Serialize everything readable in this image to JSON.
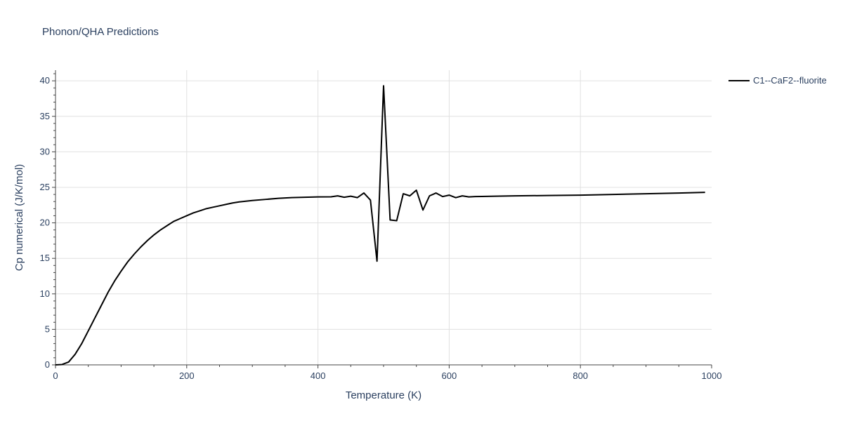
{
  "chart_data": {
    "type": "line",
    "title": "Phonon/QHA Predictions",
    "xlabel": "Temperature (K)",
    "ylabel": "Cp numerical (J/K/mol)",
    "xlim": [
      0,
      1000
    ],
    "ylim": [
      0,
      41.5
    ],
    "x_ticks": [
      0,
      200,
      400,
      600,
      800,
      1000
    ],
    "y_ticks": [
      0,
      5,
      10,
      15,
      20,
      25,
      30,
      35,
      40
    ],
    "grid": true,
    "legend_position": "top-right",
    "series": [
      {
        "name": "C1--CaF2--fluorite",
        "color": "#000000",
        "x": [
          0,
          10,
          20,
          30,
          40,
          50,
          60,
          70,
          80,
          90,
          100,
          110,
          120,
          130,
          140,
          150,
          160,
          170,
          180,
          190,
          200,
          210,
          220,
          230,
          240,
          250,
          260,
          270,
          280,
          290,
          300,
          320,
          340,
          360,
          380,
          400,
          420,
          430,
          440,
          450,
          460,
          470,
          480,
          490,
          500,
          510,
          520,
          530,
          540,
          550,
          560,
          570,
          580,
          590,
          600,
          610,
          620,
          630,
          640,
          650,
          670,
          700,
          750,
          800,
          850,
          900,
          950,
          990
        ],
        "y": [
          0,
          0.05,
          0.4,
          1.5,
          3.0,
          4.8,
          6.6,
          8.4,
          10.2,
          11.8,
          13.2,
          14.5,
          15.6,
          16.6,
          17.5,
          18.3,
          19.0,
          19.6,
          20.2,
          20.6,
          21.0,
          21.4,
          21.7,
          22.0,
          22.2,
          22.4,
          22.6,
          22.8,
          22.95,
          23.05,
          23.15,
          23.3,
          23.45,
          23.55,
          23.6,
          23.65,
          23.67,
          23.8,
          23.6,
          23.75,
          23.55,
          24.2,
          23.2,
          14.6,
          39.3,
          20.4,
          20.3,
          24.1,
          23.8,
          24.6,
          21.8,
          23.8,
          24.2,
          23.7,
          23.9,
          23.55,
          23.8,
          23.65,
          23.7,
          23.72,
          23.75,
          23.8,
          23.85,
          23.9,
          24.0,
          24.1,
          24.2,
          24.3
        ]
      }
    ]
  }
}
